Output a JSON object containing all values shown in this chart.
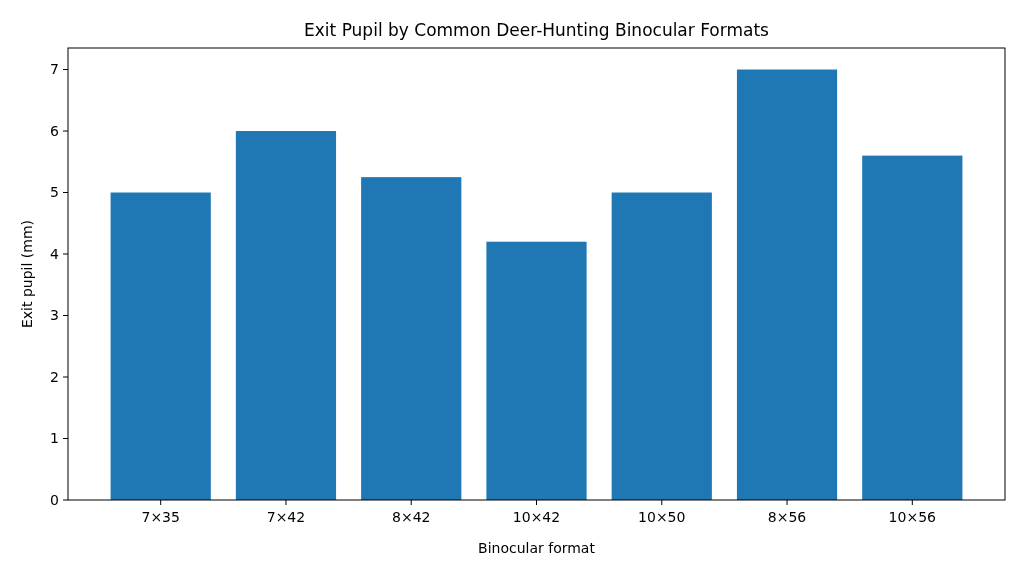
{
  "chart_data": {
    "type": "bar",
    "title": "Exit Pupil by Common Deer-Hunting Binocular Formats",
    "xlabel": "Binocular format",
    "ylabel": "Exit pupil (mm)",
    "categories": [
      "7×35",
      "7×42",
      "8×42",
      "10×42",
      "10×50",
      "8×56",
      "10×56"
    ],
    "values": [
      5,
      6,
      5.25,
      4.2,
      5,
      7,
      5.6
    ],
    "color": "#1f77b4",
    "ylim": [
      0,
      7.35
    ],
    "yticks": [
      0,
      1,
      2,
      3,
      4,
      5,
      6,
      7
    ]
  }
}
